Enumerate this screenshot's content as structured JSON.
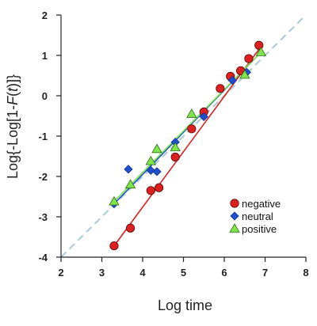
{
  "chart_data": {
    "type": "scatter",
    "xlabel": "Log time",
    "ylabel_parts": [
      "Log{-Log[1-",
      "F",
      "(",
      "t",
      ")]}"
    ],
    "xlim": [
      2,
      8
    ],
    "ylim": [
      -4,
      2
    ],
    "xticks": [
      2,
      3,
      4,
      5,
      6,
      7,
      8
    ],
    "yticks": [
      -4,
      -3,
      -2,
      -1,
      0,
      1,
      2
    ],
    "legend_position": "bottom-right",
    "reference_line": {
      "style": "dashed",
      "color": "#a9c9d3",
      "slope": 1,
      "intercept": -6
    },
    "series": [
      {
        "name": "negative",
        "color": "#dd1f1f",
        "marker": "circle",
        "fit": [
          [
            3.3,
            -3.72
          ],
          [
            6.9,
            1.22
          ]
        ],
        "points": [
          [
            3.3,
            -3.72
          ],
          [
            3.7,
            -3.28
          ],
          [
            4.2,
            -2.35
          ],
          [
            4.4,
            -2.28
          ],
          [
            4.8,
            -1.52
          ],
          [
            5.2,
            -0.82
          ],
          [
            5.5,
            -0.4
          ],
          [
            5.9,
            0.18
          ],
          [
            6.15,
            0.48
          ],
          [
            6.4,
            0.62
          ],
          [
            6.6,
            0.92
          ],
          [
            6.85,
            1.25
          ]
        ]
      },
      {
        "name": "neutral",
        "color": "#1f4fcf",
        "marker": "diamond",
        "fit": [
          [
            3.3,
            -2.68
          ],
          [
            6.9,
            1.08
          ]
        ],
        "points": [
          [
            3.3,
            -2.68
          ],
          [
            3.65,
            -1.82
          ],
          [
            4.2,
            -1.85
          ],
          [
            4.35,
            -1.88
          ],
          [
            4.8,
            -1.15
          ],
          [
            5.5,
            -0.52
          ],
          [
            6.2,
            0.38
          ],
          [
            6.55,
            0.58
          ]
        ]
      },
      {
        "name": "positive",
        "color": "#7ce64a",
        "marker": "triangle",
        "fit": [
          [
            3.3,
            -2.62
          ],
          [
            6.9,
            1.08
          ]
        ],
        "points": [
          [
            3.3,
            -2.62
          ],
          [
            3.7,
            -2.2
          ],
          [
            4.2,
            -1.62
          ],
          [
            4.35,
            -1.32
          ],
          [
            4.8,
            -1.28
          ],
          [
            5.2,
            -0.45
          ],
          [
            6.5,
            0.52
          ],
          [
            6.9,
            1.08
          ]
        ]
      }
    ]
  }
}
